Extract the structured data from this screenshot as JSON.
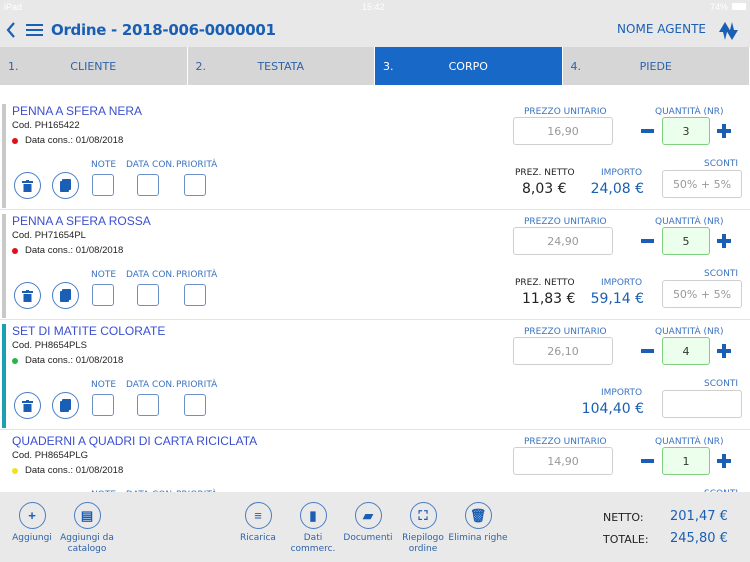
{
  "status": {
    "device": "iPad",
    "time": "15:42",
    "battery": "74%"
  },
  "header": {
    "title": "Ordine - 2018-006-0000001",
    "agent": "NOME AGENTE"
  },
  "tabs": [
    {
      "num": "1.",
      "label": "CLIENTE"
    },
    {
      "num": "2.",
      "label": "TESTATA"
    },
    {
      "num": "3.",
      "label": "CORPO",
      "active": true
    },
    {
      "num": "4.",
      "label": "PIEDE"
    }
  ],
  "labels": {
    "note": "NOTE",
    "data_con": "DATA CON.",
    "priorita": "PRIORITÀ",
    "prezzo_unitario": "PREZZO UNITARIO",
    "quantita": "QUANTITÀ (NR)",
    "prez_netto": "PREZ. NETTO",
    "importo": "IMPORTO",
    "sconti": "SCONTI"
  },
  "rows": [
    {
      "name": "PENNA A SFERA NERA",
      "cod": "Cod. PH165422",
      "cons": "Data cons.: 01/08/2018",
      "dot_color": "#e0101a",
      "bar_color": "#c8c8c8",
      "prezzo": "16,90",
      "qty": "3",
      "prez_netto": "8,03 €",
      "importo": "24,08 €",
      "sconti": "50% + 5%"
    },
    {
      "name": "PENNA A SFERA ROSSA",
      "cod": "Cod. PH71654PL",
      "cons": "Data cons.: 01/08/2018",
      "dot_color": "#e0101a",
      "bar_color": "#c8c8c8",
      "prezzo": "24,90",
      "qty": "5",
      "prez_netto": "11,83 €",
      "importo": "59,14 €",
      "sconti": "50% + 5%"
    },
    {
      "name": "SET DI MATITE COLORATE",
      "cod": "Cod. PH8654PLS",
      "cons": "Data cons.: 01/08/2018",
      "dot_color": "#2ab34a",
      "bar_color": "#1aa0b0",
      "prezzo": "26,10",
      "qty": "4",
      "prez_netto": "",
      "importo": "104,40 €",
      "sconti": ""
    },
    {
      "name": "QUADERNI A QUADRI DI CARTA RICICLATA",
      "cod": "Cod. PH8654PLG",
      "cons": "Data cons.: 01/08/2018",
      "dot_color": "#f2e21a",
      "bar_color": "#ffffff",
      "prezzo": "14,90",
      "qty": "1",
      "prez_netto": "",
      "importo": "",
      "sconti": ""
    }
  ],
  "footer": {
    "buttons": [
      {
        "label": "Aggiungi",
        "icon": "plus-icon",
        "glyph": "+"
      },
      {
        "label": "Aggiungi da catalogo",
        "icon": "catalog-icon",
        "glyph": "▤"
      },
      {
        "label": "Ricarica",
        "icon": "list-icon",
        "glyph": "≡"
      },
      {
        "label": "Dati commerc.",
        "icon": "book-icon",
        "glyph": "▮"
      },
      {
        "label": "Documenti",
        "icon": "document-icon",
        "glyph": "▰"
      },
      {
        "label": "Riepilogo ordine",
        "icon": "expand-icon",
        "glyph": "⛶"
      },
      {
        "label": "Elimina righe",
        "icon": "trash-icon",
        "glyph": "🗑"
      }
    ],
    "netto_label": "NETTO:",
    "netto": "201,47 €",
    "totale_label": "TOTALE:",
    "totale": "245,80 €"
  },
  "colors": {
    "accent": "#1868c8",
    "text_blue": "#1a5fb4"
  }
}
